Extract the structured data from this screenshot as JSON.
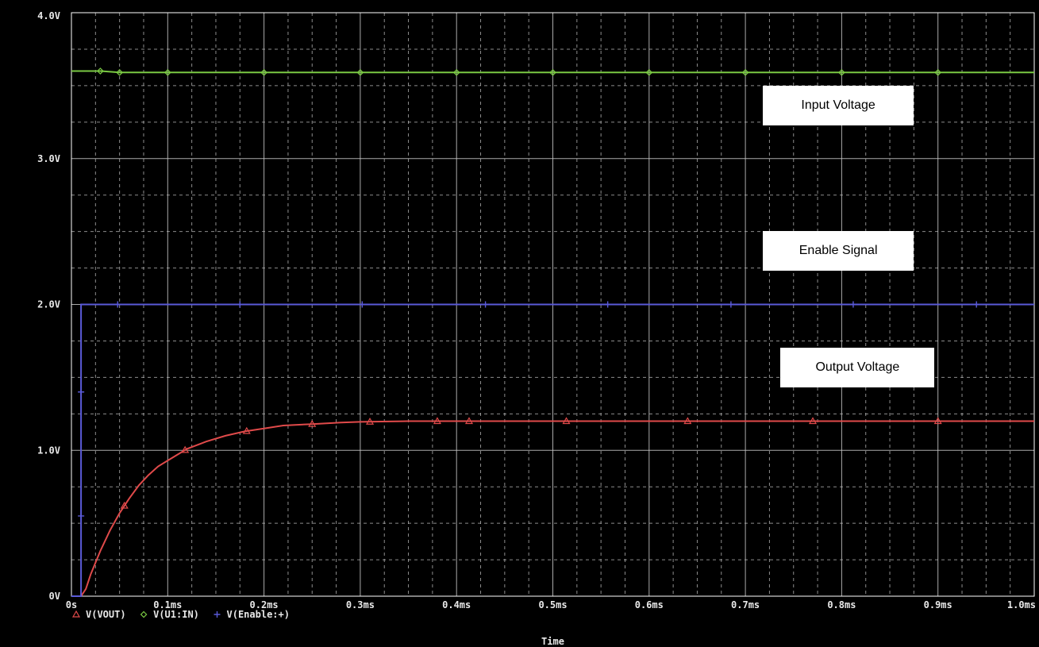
{
  "chart_data": {
    "type": "line",
    "xlabel": "Time",
    "ylabel": "",
    "xlim": [
      0,
      1.0
    ],
    "ylim": [
      0,
      4.0
    ],
    "x_unit": "ms",
    "x_ticks": [
      {
        "value": 0.0,
        "label": "0s"
      },
      {
        "value": 0.1,
        "label": "0.1ms"
      },
      {
        "value": 0.2,
        "label": "0.2ms"
      },
      {
        "value": 0.3,
        "label": "0.3ms"
      },
      {
        "value": 0.4,
        "label": "0.4ms"
      },
      {
        "value": 0.5,
        "label": "0.5ms"
      },
      {
        "value": 0.6,
        "label": "0.6ms"
      },
      {
        "value": 0.7,
        "label": "0.7ms"
      },
      {
        "value": 0.8,
        "label": "0.8ms"
      },
      {
        "value": 0.9,
        "label": "0.9ms"
      },
      {
        "value": 1.0,
        "label": "1.0ms"
      }
    ],
    "y_ticks": [
      {
        "value": 0,
        "label": "0V"
      },
      {
        "value": 1.0,
        "label": "1.0V"
      },
      {
        "value": 2.0,
        "label": "2.0V"
      },
      {
        "value": 3.0,
        "label": "3.0V"
      },
      {
        "value": 4.0,
        "label": "4.0V"
      }
    ],
    "grid": true,
    "background": "#000000",
    "grid_color": "#c8c8c8",
    "legend_position": "bottom-left",
    "series": [
      {
        "name": "V(VOUT)",
        "color": "#e04a4a",
        "marker": "triangle",
        "x": [
          0,
          0.01,
          0.015,
          0.02,
          0.03,
          0.04,
          0.05,
          0.06,
          0.07,
          0.08,
          0.09,
          0.1,
          0.12,
          0.14,
          0.16,
          0.18,
          0.2,
          0.22,
          0.25,
          0.28,
          0.3,
          0.35,
          0.4,
          0.5,
          0.6,
          0.7,
          0.8,
          0.9,
          1.0
        ],
        "values": [
          0,
          0,
          0.05,
          0.15,
          0.31,
          0.45,
          0.57,
          0.67,
          0.76,
          0.83,
          0.89,
          0.93,
          1.01,
          1.06,
          1.1,
          1.13,
          1.15,
          1.17,
          1.18,
          1.19,
          1.195,
          1.2,
          1.2,
          1.2,
          1.2,
          1.2,
          1.2,
          1.2,
          1.2
        ],
        "marker_x": [
          0.055,
          0.118,
          0.182,
          0.25,
          0.31,
          0.38,
          0.413,
          0.514,
          0.64,
          0.77,
          0.9
        ]
      },
      {
        "name": "V(U1:IN)",
        "color": "#7ac943",
        "marker": "diamond",
        "x": [
          0,
          0.03,
          0.05,
          1.0
        ],
        "values": [
          3.6,
          3.6,
          3.59,
          3.59
        ],
        "marker_x": [
          0.03,
          0.05,
          0.1,
          0.2,
          0.3,
          0.4,
          0.5,
          0.6,
          0.7,
          0.8,
          0.9
        ]
      },
      {
        "name": "V(Enable:+)",
        "color": "#5a5ad8",
        "marker": "plus",
        "x": [
          0,
          0.01,
          0.01,
          1.0
        ],
        "values": [
          0,
          0,
          2.0,
          2.0
        ],
        "marker_x": [
          0.048,
          0.175,
          0.302,
          0.43,
          0.557,
          0.685,
          0.812,
          0.94
        ],
        "edge_markers": [
          0.55,
          1.4
        ]
      }
    ],
    "annotations": [
      {
        "text": "Input Voltage",
        "x": 0.78,
        "y": 3.3
      },
      {
        "text": "Enable Signal",
        "x": 0.78,
        "y": 2.3
      },
      {
        "text": "Output Voltage",
        "x": 0.8,
        "y": 1.5
      }
    ]
  }
}
